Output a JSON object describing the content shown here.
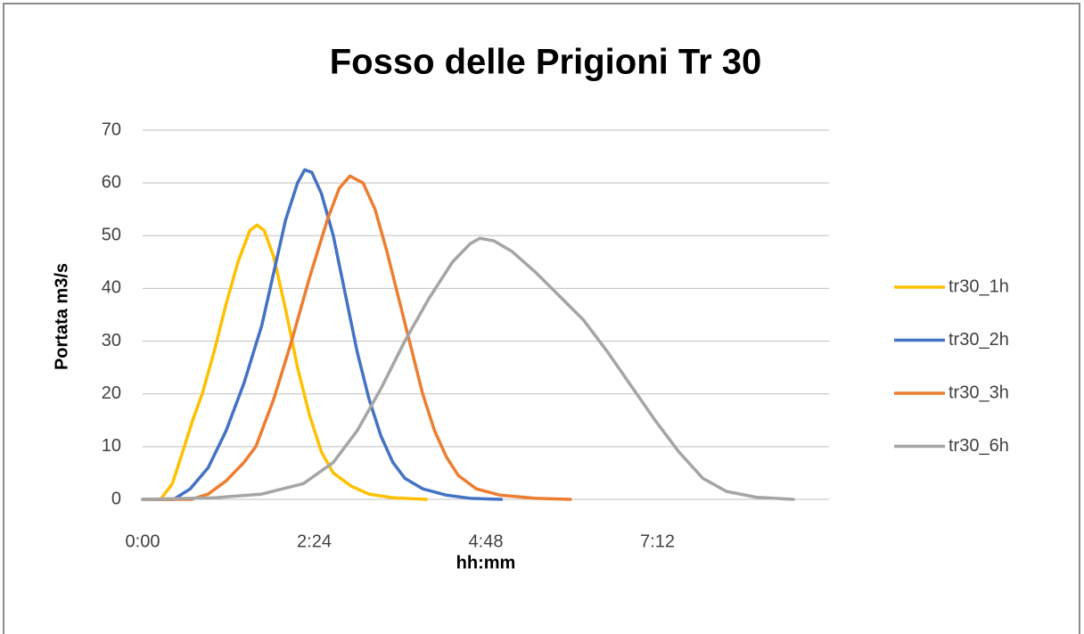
{
  "chart_data": {
    "type": "line",
    "title": "Fosso delle Prigioni Tr 30",
    "xlabel": "hh:mm",
    "ylabel": "Portata m3/s",
    "xlim": [
      0,
      576
    ],
    "ylim": [
      0,
      70
    ],
    "xticks": [
      {
        "value": 0,
        "label": "0:00"
      },
      {
        "value": 144,
        "label": "2:24"
      },
      {
        "value": 288,
        "label": "4:48"
      },
      {
        "value": 432,
        "label": "7:12"
      }
    ],
    "yticks": [
      0,
      10,
      20,
      30,
      40,
      50,
      60,
      70
    ],
    "grid": true,
    "legend": "right",
    "series": [
      {
        "name": "tr30_1h",
        "color": "#FFC000",
        "x": [
          0,
          15,
          25,
          35,
          42,
          50,
          60,
          70,
          80,
          90,
          96,
          102,
          110,
          120,
          130,
          140,
          150,
          160,
          175,
          190,
          210,
          238
        ],
        "values": [
          0,
          0,
          3,
          10,
          15,
          20,
          28,
          37,
          45,
          51,
          52,
          51,
          46,
          36,
          25,
          16,
          9,
          5,
          2.5,
          1,
          0.3,
          0
        ]
      },
      {
        "name": "tr30_2h",
        "color": "#4472C4",
        "x": [
          0,
          26,
          40,
          55,
          70,
          85,
          100,
          110,
          120,
          130,
          136,
          142,
          150,
          160,
          170,
          180,
          190,
          200,
          210,
          220,
          235,
          255,
          275,
          301
        ],
        "values": [
          0,
          0,
          2,
          6,
          13,
          22,
          33,
          43,
          53,
          60,
          62.5,
          62,
          58,
          50,
          39,
          28,
          19,
          12,
          7,
          4,
          2,
          0.8,
          0.2,
          0
        ]
      },
      {
        "name": "tr30_3h",
        "color": "#ED7D31",
        "x": [
          0,
          41,
          55,
          70,
          85,
          95,
          110,
          125,
          140,
          155,
          165,
          174,
          185,
          195,
          205,
          215,
          225,
          235,
          245,
          255,
          265,
          280,
          300,
          330,
          359
        ],
        "values": [
          0,
          0,
          1,
          3.5,
          7,
          10,
          19,
          30,
          42,
          53,
          59,
          61.3,
          60,
          55,
          47,
          38,
          29,
          20,
          13,
          8,
          4.5,
          2,
          0.8,
          0.2,
          0
        ]
      },
      {
        "name": "tr30_6h",
        "color": "#A5A5A5",
        "x": [
          0,
          60,
          100,
          135,
          160,
          180,
          200,
          220,
          240,
          260,
          275,
          283,
          295,
          310,
          330,
          350,
          370,
          390,
          410,
          430,
          450,
          470,
          490,
          515,
          546
        ],
        "values": [
          0,
          0.3,
          1,
          3,
          7,
          13,
          21,
          30,
          38,
          45,
          48.5,
          49.5,
          49,
          47,
          43,
          38.5,
          34,
          28,
          21.5,
          15,
          9,
          4,
          1.5,
          0.4,
          0
        ]
      }
    ]
  }
}
